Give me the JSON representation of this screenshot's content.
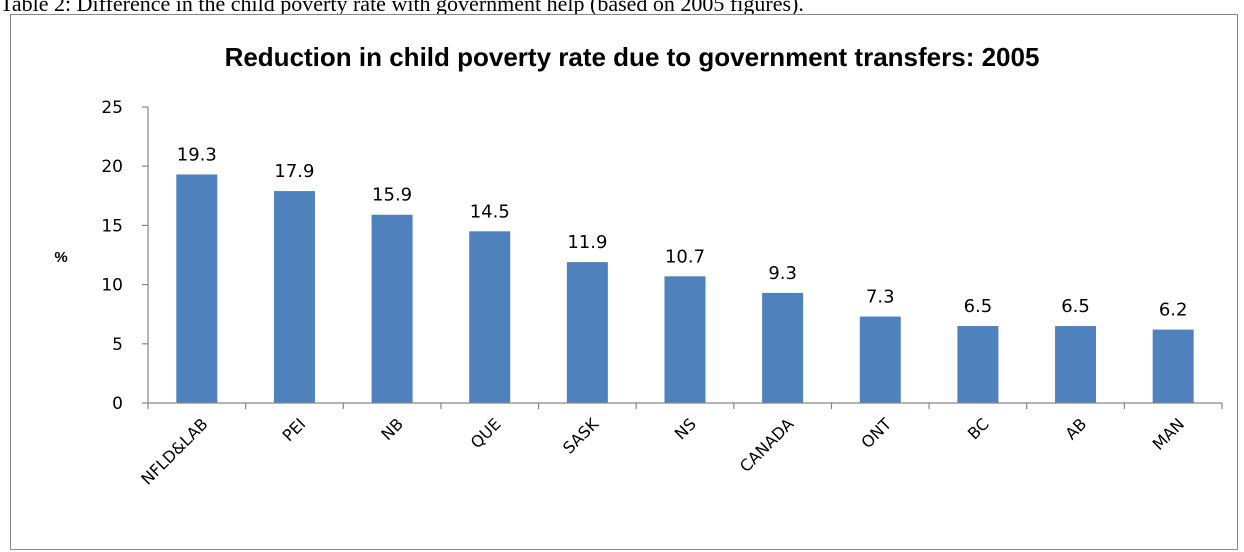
{
  "caption": "Table 2: Difference in the child poverty rate with government help (based on 2005 figures).",
  "chart_data": {
    "type": "bar",
    "title": "Reduction in child poverty rate due to government transfers: 2005",
    "xlabel": "",
    "ylabel": "%",
    "ylim": [
      0,
      25
    ],
    "yticks": [
      0,
      5,
      10,
      15,
      20,
      25
    ],
    "categories": [
      "NFLD&LAB",
      "PEI",
      "NB",
      "QUE",
      "SASK",
      "NS",
      "CANADA",
      "ONT",
      "BC",
      "AB",
      "MAN"
    ],
    "values": [
      19.3,
      17.9,
      15.9,
      14.5,
      11.9,
      10.7,
      9.3,
      7.3,
      6.5,
      6.5,
      6.2
    ],
    "data_labels": [
      "19.3",
      "17.9",
      "15.9",
      "14.5",
      "11.9",
      "10.7",
      "9.3",
      "7.3",
      "6.5",
      "6.5",
      "6.2"
    ],
    "bar_color": "#4f81bd",
    "grid": false,
    "legend": "none"
  }
}
